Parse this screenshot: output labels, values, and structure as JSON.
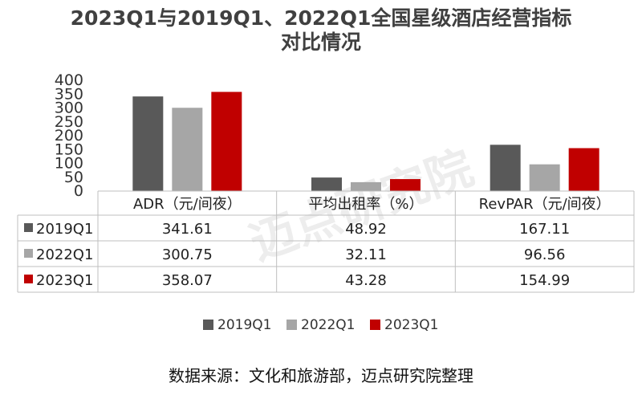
{
  "title_line1": "2023Q1与2019Q1、2022Q1全国星级酒店经营指标",
  "title_line2": "对比情况",
  "source": "数据来源：文化和旅游部，迈点研究院整理",
  "watermark": "迈点研究院",
  "chart_data": {
    "type": "bar",
    "categories": [
      "ADR（元/间夜）",
      "平均出租率（%）",
      "RevPAR（元/间夜）"
    ],
    "series": [
      {
        "name": "2019Q1",
        "values": [
          341.61,
          48.92,
          167.11
        ],
        "labels": [
          "341.61",
          "48.92",
          "167.11"
        ],
        "color": "#595959"
      },
      {
        "name": "2022Q1",
        "values": [
          300.75,
          32.11,
          96.56
        ],
        "labels": [
          "300.75",
          "32.11",
          "96.56"
        ],
        "color": "#a6a6a6"
      },
      {
        "name": "2023Q1",
        "values": [
          358.07,
          43.28,
          154.99
        ],
        "labels": [
          "358.07",
          "43.28",
          "154.99"
        ],
        "color": "#c00000"
      }
    ],
    "yticks": [
      0,
      50,
      100,
      150,
      200,
      250,
      300,
      350,
      400
    ],
    "ylim": [
      0,
      400
    ],
    "grid": false,
    "legend": "bottom",
    "data_table": true
  }
}
